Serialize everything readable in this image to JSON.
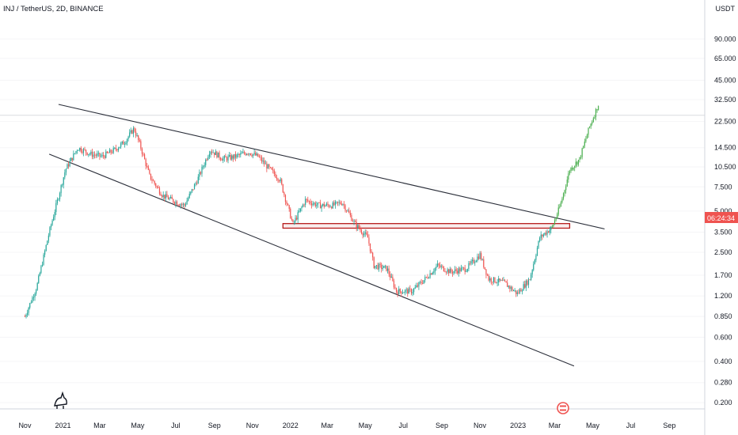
{
  "header": {
    "title": "INJ / TetherUS, 2D, BINANCE"
  },
  "axis": {
    "currency": "USDT",
    "price_tag": "06:24:34"
  },
  "chart_data": {
    "type": "candlestick",
    "title": "INJ / TetherUS, 2D, BINANCE",
    "y_scale": "log",
    "ylim": [
      0.18,
      160
    ],
    "y_ticks": [
      "90.000",
      "65.000",
      "45.000",
      "32.500",
      "22.500",
      "14.500",
      "10.500",
      "7.500",
      "5.000",
      "3.500",
      "2.500",
      "1.700",
      "1.200",
      "0.850",
      "0.600",
      "0.400",
      "0.280",
      "0.200"
    ],
    "x_labels": [
      "Nov",
      "2021",
      "Mar",
      "May",
      "Jul",
      "Sep",
      "Nov",
      "2022",
      "Mar",
      "May",
      "Jul",
      "Sep",
      "Nov",
      "2023",
      "Mar",
      "May",
      "Jul",
      "Sep"
    ],
    "xlim": [
      "2020-10-20",
      "2023-10-15"
    ],
    "series": [
      {
        "points": [
          [
            "2020-11-01",
            0.85
          ],
          [
            "2020-11-20",
            1.4
          ],
          [
            "2020-12-10",
            3.5
          ],
          [
            "2021-01-05",
            10.0
          ],
          [
            "2021-01-25",
            14.5
          ],
          [
            "2021-02-15",
            13.0
          ],
          [
            "2021-03-05",
            12.5
          ],
          [
            "2021-03-25",
            14.0
          ],
          [
            "2021-04-10",
            16.0
          ],
          [
            "2021-04-25",
            20.0
          ],
          [
            "2021-05-05",
            15.0
          ],
          [
            "2021-05-20",
            9.0
          ],
          [
            "2021-06-10",
            6.5
          ],
          [
            "2021-06-25",
            6.0
          ],
          [
            "2021-07-15",
            5.5
          ],
          [
            "2021-08-05",
            8.5
          ],
          [
            "2021-08-25",
            14.0
          ],
          [
            "2021-09-15",
            12.0
          ],
          [
            "2021-10-05",
            12.5
          ],
          [
            "2021-10-25",
            13.5
          ],
          [
            "2021-11-10",
            12.5
          ],
          [
            "2021-11-25",
            10.5
          ],
          [
            "2021-12-15",
            8.5
          ],
          [
            "2022-01-05",
            4.0
          ],
          [
            "2022-01-25",
            6.0
          ],
          [
            "2022-02-15",
            5.5
          ],
          [
            "2022-03-10",
            5.5
          ],
          [
            "2022-03-25",
            5.8
          ],
          [
            "2022-04-15",
            4.0
          ],
          [
            "2022-05-05",
            3.2
          ],
          [
            "2022-05-15",
            2.0
          ],
          [
            "2022-06-05",
            1.9
          ],
          [
            "2022-06-20",
            1.3
          ],
          [
            "2022-07-15",
            1.3
          ],
          [
            "2022-08-05",
            1.6
          ],
          [
            "2022-08-25",
            2.0
          ],
          [
            "2022-09-15",
            1.8
          ],
          [
            "2022-10-10",
            1.9
          ],
          [
            "2022-11-01",
            2.4
          ],
          [
            "2022-11-15",
            1.6
          ],
          [
            "2022-12-10",
            1.5
          ],
          [
            "2022-12-31",
            1.25
          ],
          [
            "2023-01-20",
            1.6
          ],
          [
            "2023-02-05",
            3.2
          ],
          [
            "2023-02-25",
            3.8
          ],
          [
            "2023-03-10",
            5.5
          ],
          [
            "2023-03-25",
            10.0
          ],
          [
            "2023-04-10",
            12.0
          ],
          [
            "2023-04-25",
            20.0
          ],
          [
            "2023-05-10",
            30.0
          ]
        ]
      }
    ],
    "trend_lines": [
      {
        "from": [
          "2020-12-25",
          30.0
        ],
        "to": [
          "2023-05-20",
          3.7
        ]
      },
      {
        "from": [
          "2020-12-10",
          13.0
        ],
        "to": [
          "2023-04-01",
          0.37
        ]
      }
    ],
    "zone": {
      "x_range": [
        "2021-12-20",
        "2023-03-25"
      ],
      "y_range": [
        3.75,
        4.05
      ]
    },
    "reference_level": 25.0,
    "colors": {
      "up": "#26a69a",
      "down": "#ef5350",
      "projection": "#4caf50",
      "trend_line": "#2a2e39",
      "zone_border": "#b71c1c",
      "price_tag_bg": "#ef5350"
    }
  }
}
